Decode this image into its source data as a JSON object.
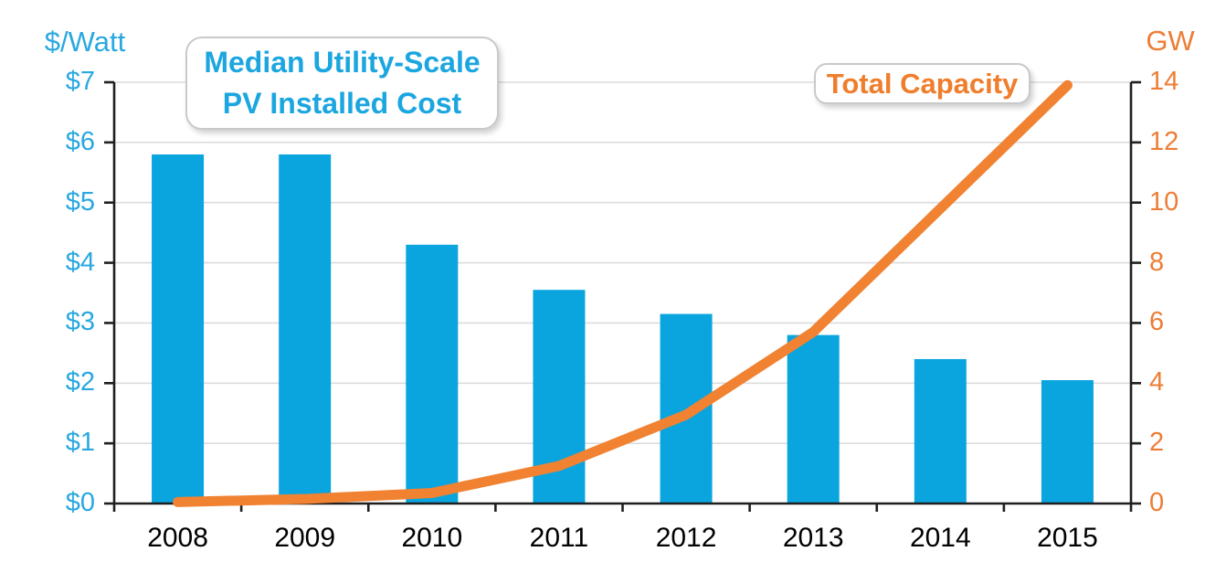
{
  "chart_data": {
    "type": "bar",
    "title": "",
    "categories": [
      "2008",
      "2009",
      "2010",
      "2011",
      "2012",
      "2013",
      "2014",
      "2015"
    ],
    "series": [
      {
        "name": "Median Utility-Scale PV Installed Cost",
        "label_line1": "Median Utility-Scale",
        "label_line2": "PV Installed Cost",
        "type": "bar",
        "axis": "left",
        "color": "#0aa4df",
        "values": [
          5.8,
          5.8,
          4.3,
          3.55,
          3.15,
          2.8,
          2.4,
          2.05
        ]
      },
      {
        "name": "Total Capacity",
        "type": "line",
        "axis": "right",
        "color": "#f08232",
        "values": [
          0.05,
          0.15,
          0.35,
          1.25,
          2.95,
          5.7,
          9.8,
          13.9
        ]
      }
    ],
    "left_axis": {
      "label": "$/Watt",
      "min": 0,
      "max": 7,
      "tick_labels": [
        "$0",
        "$1",
        "$2",
        "$3",
        "$4",
        "$5",
        "$6",
        "$7"
      ],
      "color": "#29a8e0"
    },
    "right_axis": {
      "label": "GW",
      "min": 0,
      "max": 14,
      "tick_labels": [
        "0",
        "2",
        "4",
        "6",
        "8",
        "10",
        "12",
        "14"
      ],
      "color": "#ed7d36"
    },
    "x_axis": {
      "label": "",
      "tick_label_color": "#000000"
    },
    "grid": true,
    "gridline_color": "#dcdcdc",
    "axis_line_color": "#1f1f1f",
    "legend_position": "floating-callouts",
    "callout_bar_text_color": "#1ba6e0",
    "callout_line_text_color": "#f07d2b"
  }
}
